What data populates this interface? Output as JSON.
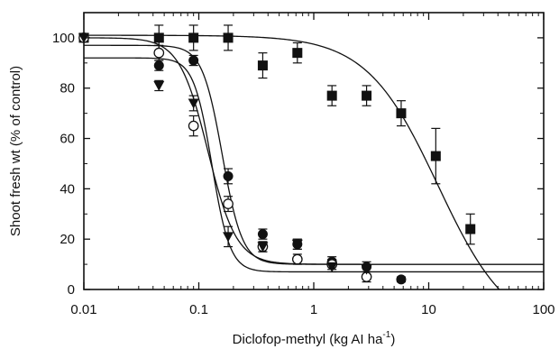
{
  "chart_data": {
    "type": "scatter",
    "xlabel": "Diclofop-methyl (kg AI ha",
    "xlabel_sup": "-1",
    "xlabel_close": ")",
    "ylabel": "Shoot fresh wt  (% of control)",
    "xscale": "log",
    "xlim": [
      0.01,
      100
    ],
    "ylim": [
      0,
      110
    ],
    "x_ticks": [
      {
        "value": 0.01,
        "label": "0.01"
      },
      {
        "value": 0.1,
        "label": "0.1"
      },
      {
        "value": 1,
        "label": "1"
      },
      {
        "value": 10,
        "label": "10"
      },
      {
        "value": 100,
        "label": "100"
      }
    ],
    "y_ticks": [
      {
        "value": 0,
        "label": "0"
      },
      {
        "value": 20,
        "label": "20"
      },
      {
        "value": 40,
        "label": "40"
      },
      {
        "value": 60,
        "label": "60"
      },
      {
        "value": 80,
        "label": "80"
      },
      {
        "value": 100,
        "label": "100"
      }
    ],
    "grid": false,
    "legend": "none",
    "series": [
      {
        "marker": "filled-square",
        "x": [
          0.01,
          0.045,
          0.09,
          0.18,
          0.36,
          0.72,
          1.44,
          2.88,
          5.76,
          11.52,
          23.04
        ],
        "y": [
          100,
          100,
          100,
          100,
          89,
          94,
          77,
          77,
          70,
          53,
          24
        ],
        "err": [
          0,
          5,
          5,
          5,
          5,
          4,
          4,
          4,
          5,
          11,
          6
        ],
        "curve": {
          "top": 101,
          "bottom": -18,
          "ec50": 12,
          "slope": 1.4
        }
      },
      {
        "marker": "filled-circle",
        "x": [
          0.01,
          0.045,
          0.09,
          0.18,
          0.36,
          0.72,
          1.44,
          2.88,
          5.76
        ],
        "y": [
          100,
          89,
          91,
          45,
          22,
          18,
          11,
          9,
          4
        ],
        "err": [
          0,
          2,
          2,
          3,
          2,
          2,
          2,
          2,
          1
        ],
        "curve": {
          "top": 97,
          "bottom": 10,
          "ec50": 0.16,
          "slope": 5.0
        }
      },
      {
        "marker": "open-circle",
        "x": [
          0.01,
          0.045,
          0.09,
          0.18,
          0.36,
          0.72,
          1.44,
          2.88
        ],
        "y": [
          100,
          94,
          65,
          34,
          17,
          12,
          10,
          5
        ],
        "err": [
          0,
          3,
          4,
          3,
          2,
          2,
          2,
          2
        ],
        "curve": {
          "top": 100,
          "bottom": 10,
          "ec50": 0.12,
          "slope": 3.5
        }
      },
      {
        "marker": "filled-triangle-down",
        "x": [
          0.01,
          0.045,
          0.09,
          0.18,
          0.36,
          0.72,
          1.44,
          2.88
        ],
        "y": [
          100,
          81,
          74,
          21,
          17,
          18,
          9,
          8
        ],
        "err": [
          0,
          2,
          3,
          4,
          2,
          2,
          2,
          2
        ],
        "curve": {
          "top": 92,
          "bottom": 7,
          "ec50": 0.13,
          "slope": 5.5
        }
      }
    ]
  }
}
